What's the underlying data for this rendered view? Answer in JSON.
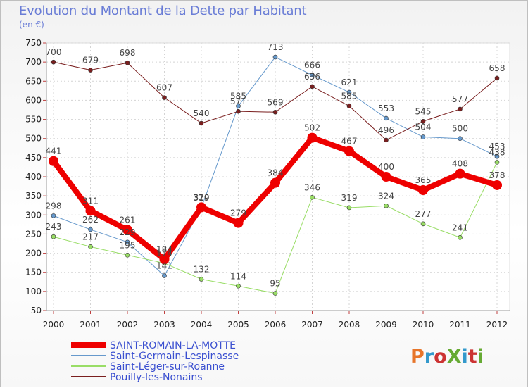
{
  "title": "Evolution du Montant de la Dette par Habitant",
  "subtitle": "(en €)",
  "logo": {
    "text": "ProXiti",
    "colors": [
      "#e7752a",
      "#3399cc",
      "#cc3333",
      "#66aa33",
      "#3399cc",
      "#cc3333",
      "#66aa33"
    ]
  },
  "chart_data": {
    "type": "line",
    "x": [
      "2000",
      "2001",
      "2002",
      "2003",
      "2004",
      "2005",
      "2006",
      "2007",
      "2008",
      "2009",
      "2010",
      "2011",
      "2012"
    ],
    "ylim": [
      50,
      750
    ],
    "yticks": [
      50,
      100,
      150,
      200,
      250,
      300,
      350,
      400,
      450,
      500,
      550,
      600,
      650,
      700,
      750
    ],
    "grid": true,
    "legend_position": "bottom-left",
    "series": [
      {
        "name": "SAINT-ROMAIN-LA-MOTTE",
        "color": "#ee0000",
        "width": 8,
        "marker": 7,
        "values": [
          441,
          311,
          261,
          184,
          320,
          279,
          384,
          502,
          467,
          400,
          365,
          408,
          378
        ]
      },
      {
        "name": "Saint-Germain-Lespinasse",
        "color": "#6699cc",
        "width": 1,
        "marker": 3,
        "values": [
          298,
          262,
          229,
          141,
          319,
          585,
          713,
          666,
          621,
          553,
          504,
          500,
          453
        ]
      },
      {
        "name": "Saint-Léger-sur-Roanne",
        "color": "#99dd66",
        "width": 1,
        "marker": 3,
        "values": [
          243,
          217,
          195,
          174,
          132,
          114,
          95,
          346,
          319,
          324,
          277,
          241,
          438
        ]
      },
      {
        "name": "Pouilly-les-Nonains",
        "color": "#7a1f1f",
        "width": 1,
        "marker": 3,
        "values": [
          700,
          679,
          698,
          607,
          540,
          571,
          569,
          636,
          585,
          496,
          545,
          577,
          658
        ]
      }
    ]
  }
}
